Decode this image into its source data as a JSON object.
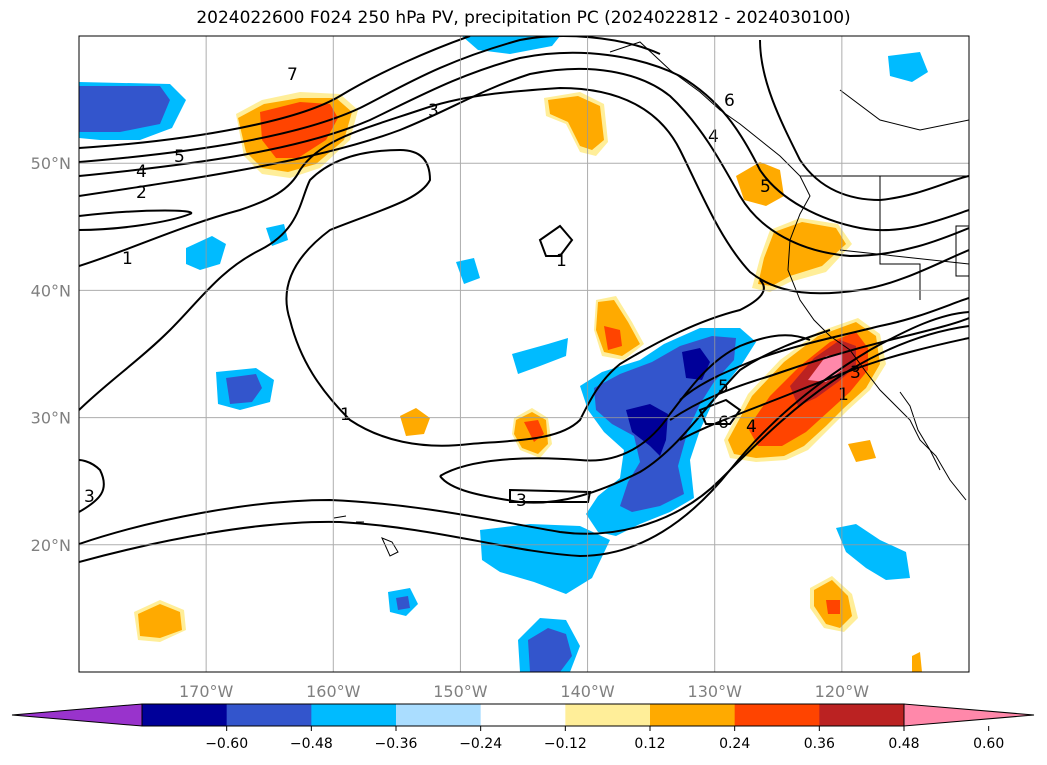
{
  "title": "2024022600 F024 250 hPa PV, precipitation PC (2024022812 - 2024030100)",
  "map": {
    "lat_range": [
      10,
      60
    ],
    "lon_range": [
      -180,
      -110
    ],
    "lat_ticks": [
      {
        "value": 20,
        "label": "20°N"
      },
      {
        "value": 30,
        "label": "30°N"
      },
      {
        "value": 40,
        "label": "40°N"
      },
      {
        "value": 50,
        "label": "50°N"
      }
    ],
    "lon_ticks": [
      {
        "value": -170,
        "label": "170°W"
      },
      {
        "value": -160,
        "label": "160°W"
      },
      {
        "value": -150,
        "label": "150°W"
      },
      {
        "value": -140,
        "label": "140°W"
      },
      {
        "value": -130,
        "label": "130°W"
      },
      {
        "value": -120,
        "label": "120°W"
      }
    ],
    "grid": true,
    "contour_field": "250 hPa PV",
    "shaded_field": "precipitation PC"
  },
  "contour_labels": [
    "7",
    "5",
    "4",
    "2",
    "1",
    "3",
    "6",
    "4",
    "5",
    "1",
    "1",
    "3",
    "5",
    "6",
    "4",
    "3",
    "1",
    "3",
    "6",
    "5",
    "3"
  ],
  "colorbar": {
    "ticks": [
      "−0.60",
      "−0.48",
      "−0.36",
      "−0.24",
      "−0.12",
      "0.12",
      "0.24",
      "0.36",
      "0.48",
      "0.60"
    ],
    "colors": [
      "#9933cc",
      "#000099",
      "#3355cc",
      "#00bbff",
      "#aaddff",
      "#ffffff",
      "#ffee99",
      "#ffaa00",
      "#ff4400",
      "#bb2222",
      "#ff88aa"
    ]
  }
}
